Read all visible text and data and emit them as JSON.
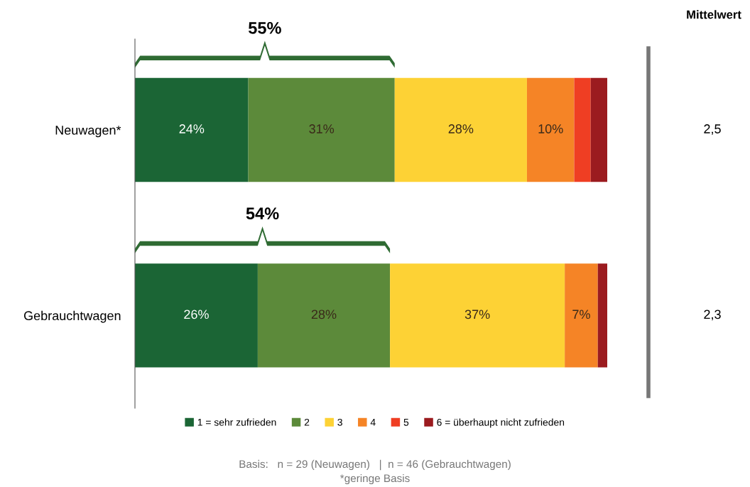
{
  "chart_data": {
    "type": "bar",
    "orientation": "horizontal",
    "stacked": true,
    "categories": [
      "Neuwagen*",
      "Gebrauchtwagen"
    ],
    "series": [
      {
        "name": "1 = sehr zufrieden",
        "color": "#1b6535",
        "values": [
          24,
          26
        ],
        "value_labels": [
          "24%",
          "26%"
        ]
      },
      {
        "name": "2",
        "color": "#5c8a3a",
        "values": [
          31,
          28
        ],
        "value_labels": [
          "31%",
          "28%"
        ]
      },
      {
        "name": "3",
        "color": "#fdd235",
        "values": [
          28,
          37
        ],
        "value_labels": [
          "28%",
          "37%"
        ]
      },
      {
        "name": "4",
        "color": "#f58426",
        "values": [
          10,
          7
        ],
        "value_labels": [
          "10%",
          "7%"
        ]
      },
      {
        "name": "5",
        "color": "#ef3e23",
        "values": [
          3.5,
          0
        ],
        "value_labels": [
          null,
          null
        ]
      },
      {
        "name": "6 = überhaupt nicht zufrieden",
        "color": "#9b1b1f",
        "values": [
          3.5,
          2
        ],
        "value_labels": [
          null,
          null
        ]
      }
    ],
    "legend": "bottom",
    "annotations": [
      "55%",
      "54%",
      "Mittelwert",
      "2,5",
      "2,3",
      "Basis:   n = 29 (Neuwagen)   |  n = 46 (Gebrauchtwagen)",
      "*geringe Basis"
    ]
  }
}
